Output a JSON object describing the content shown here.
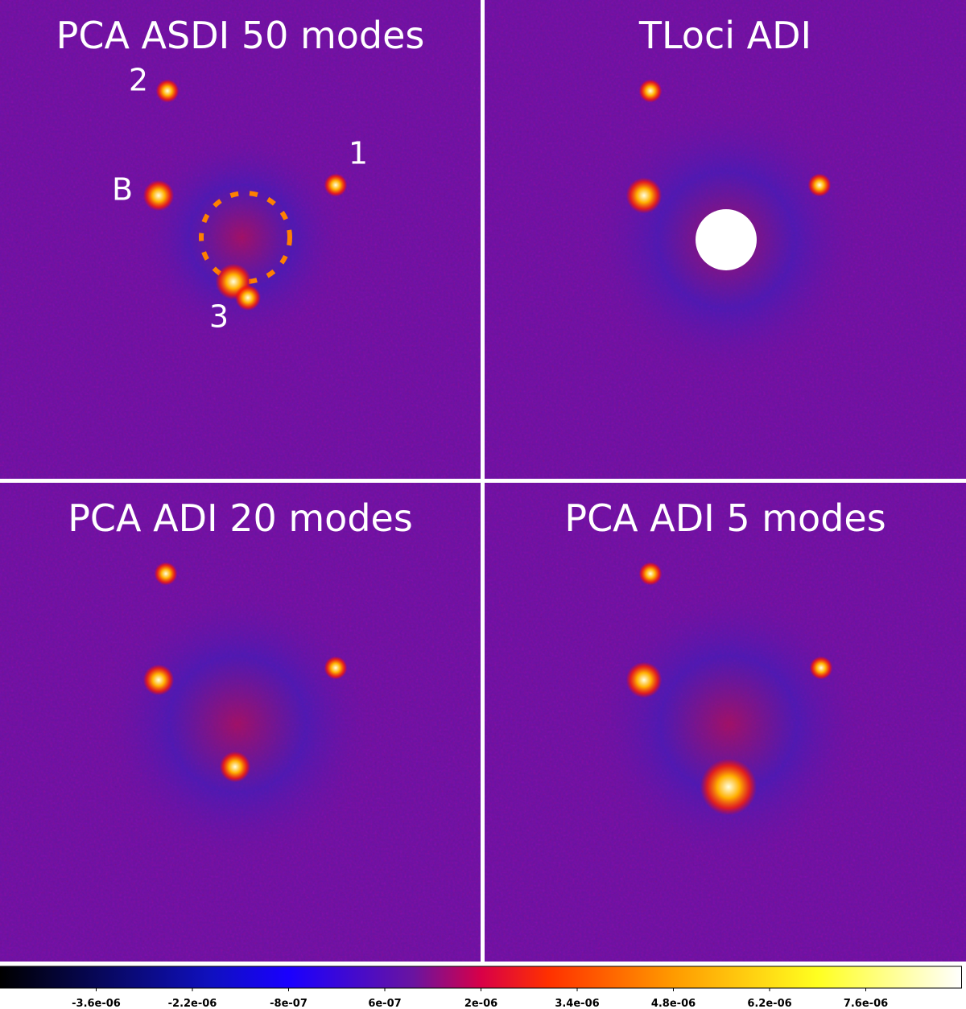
{
  "panels": [
    {
      "title": "PCA ASDI 50 modes",
      "labels": [
        "2",
        "1",
        "B",
        "3"
      ]
    },
    {
      "title": "TLoci ADI"
    },
    {
      "title": "PCA ADI 20 modes"
    },
    {
      "title": "PCA ADI 5 modes"
    }
  ],
  "colorbar": {
    "lim": [
      -5e-06,
      9e-06
    ],
    "ticks": [
      {
        "value": -3.6e-06,
        "label": "-3.6e-06"
      },
      {
        "value": -2.2e-06,
        "label": "-2.2e-06"
      },
      {
        "value": -8e-07,
        "label": "-8e-07"
      },
      {
        "value": 6e-07,
        "label": "6e-07"
      },
      {
        "value": 2e-06,
        "label": "2e-06"
      },
      {
        "value": 3.4e-06,
        "label": "3.4e-06"
      },
      {
        "value": 4.8e-06,
        "label": "4.8e-06"
      },
      {
        "value": 6.2e-06,
        "label": "6.2e-06"
      },
      {
        "value": 7.6e-06,
        "label": "7.6e-06"
      }
    ]
  }
}
